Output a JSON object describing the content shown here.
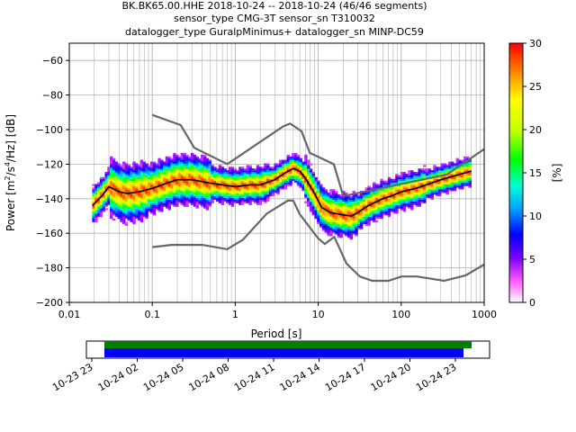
{
  "chart_data": {
    "type": "heatmap",
    "title_lines": [
      "BK.BK65.00.HHE   2018-10-24 -- 2018-10-24  (46/46 segments)",
      "sensor_type CMG-3T sensor_sn T310032",
      "datalogger_type GuralpMinimus+ datalogger_sn MINP-DC59"
    ],
    "xlabel": "Period [s]",
    "ylabel_parts": [
      "Power [m",
      "2",
      "/s",
      "4",
      "/Hz] [dB]"
    ],
    "x_scale": "log",
    "xlim": [
      0.01,
      1000
    ],
    "ylim": [
      -200,
      -50
    ],
    "x_ticks": [
      {
        "value": 0.01,
        "label": "0.01"
      },
      {
        "value": 0.1,
        "label": "0.1"
      },
      {
        "value": 1,
        "label": "1"
      },
      {
        "value": 10,
        "label": "10"
      },
      {
        "value": 100,
        "label": "100"
      },
      {
        "value": 1000,
        "label": "1000"
      }
    ],
    "y_ticks": [
      {
        "value": -60,
        "label": "−60"
      },
      {
        "value": -80,
        "label": "−80"
      },
      {
        "value": -100,
        "label": "−100"
      },
      {
        "value": -120,
        "label": "−120"
      },
      {
        "value": -140,
        "label": "−140"
      },
      {
        "value": -160,
        "label": "−160"
      },
      {
        "value": -180,
        "label": "−180"
      },
      {
        "value": -200,
        "label": "−200"
      }
    ],
    "grid": true,
    "colorbar": {
      "label": "[%]",
      "range": [
        0,
        30
      ],
      "ticks": [
        {
          "value": 0,
          "label": "0"
        },
        {
          "value": 5,
          "label": "5"
        },
        {
          "value": 10,
          "label": "10"
        },
        {
          "value": 15,
          "label": "15"
        },
        {
          "value": 20,
          "label": "20"
        },
        {
          "value": 25,
          "label": "25"
        },
        {
          "value": 30,
          "label": "30"
        }
      ]
    },
    "nhnm": [
      [
        0.1,
        -91.5
      ],
      [
        0.22,
        -97.4
      ],
      [
        0.32,
        -110.5
      ],
      [
        0.8,
        -120.0
      ],
      [
        3.8,
        -98.0
      ],
      [
        4.6,
        -96.5
      ],
      [
        6.3,
        -101.0
      ],
      [
        7.9,
        -113.5
      ],
      [
        15.4,
        -120.0
      ],
      [
        20,
        -138.5
      ],
      [
        354.8,
        -126.0
      ],
      [
        1000,
        -111.3
      ]
    ],
    "nlnm": [
      [
        0.1,
        -168.0
      ],
      [
        0.17,
        -166.7
      ],
      [
        0.4,
        -166.7
      ],
      [
        0.8,
        -169.2
      ],
      [
        1.24,
        -163.7
      ],
      [
        2.4,
        -148.6
      ],
      [
        4.3,
        -141.1
      ],
      [
        5.0,
        -141.1
      ],
      [
        6.0,
        -149.0
      ],
      [
        10.0,
        -163.0
      ],
      [
        12.0,
        -166.2
      ],
      [
        15.6,
        -162.1
      ],
      [
        21.9,
        -177.5
      ],
      [
        31.6,
        -185.0
      ],
      [
        45,
        -187.5
      ],
      [
        70,
        -187.5
      ],
      [
        101,
        -185.0
      ],
      [
        154,
        -185.0
      ],
      [
        328,
        -187.5
      ],
      [
        600,
        -184.4
      ],
      [
        1000,
        -178.0
      ]
    ],
    "mean_curve": [
      [
        0.019,
        -144
      ],
      [
        0.025,
        -138
      ],
      [
        0.03,
        -133
      ],
      [
        0.04,
        -136
      ],
      [
        0.05,
        -137
      ],
      [
        0.07,
        -136
      ],
      [
        0.1,
        -134
      ],
      [
        0.15,
        -131
      ],
      [
        0.2,
        -129
      ],
      [
        0.3,
        -129
      ],
      [
        0.5,
        -131
      ],
      [
        0.7,
        -132
      ],
      [
        1.0,
        -133
      ],
      [
        1.5,
        -132
      ],
      [
        2.0,
        -132
      ],
      [
        3.0,
        -129
      ],
      [
        4.0,
        -125
      ],
      [
        5.0,
        -122.5
      ],
      [
        6.0,
        -124
      ],
      [
        7.0,
        -128
      ],
      [
        9.0,
        -137
      ],
      [
        11.0,
        -145
      ],
      [
        14.0,
        -148
      ],
      [
        18.0,
        -149
      ],
      [
        25.0,
        -150
      ],
      [
        30.0,
        -148
      ],
      [
        40.0,
        -144
      ],
      [
        60.0,
        -140
      ],
      [
        80.0,
        -138
      ],
      [
        100.0,
        -136
      ],
      [
        150.0,
        -134
      ],
      [
        200.0,
        -132
      ],
      [
        300.0,
        -129
      ],
      [
        500.0,
        -126
      ],
      [
        700.0,
        -124
      ]
    ],
    "time_axis": {
      "tick_labels": [
        "10-23 23",
        "10-24 02",
        "10-24 05",
        "10-24 08",
        "10-24 11",
        "10-24 14",
        "10-24 17",
        "10-24 20",
        "10-24 23"
      ],
      "range_hours": [
        22.8,
        23.9
      ],
      "coverage": {
        "start_hour": 23.5,
        "end_hour": 23.25
      },
      "coverage_green": "#008000",
      "coverage_blue": "#0000ff"
    },
    "colors": {
      "noise_model": "#666666",
      "mean": "#000000",
      "grid": "#b0b0b0"
    }
  }
}
